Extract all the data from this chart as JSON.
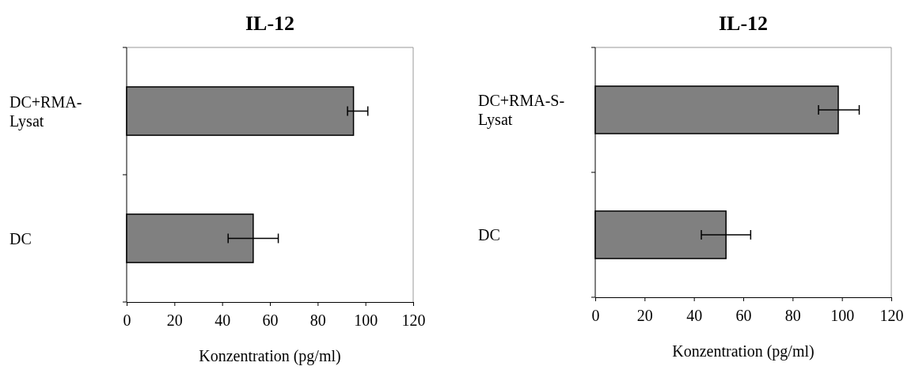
{
  "chart_data": [
    {
      "type": "bar",
      "orientation": "horizontal",
      "title": "IL-12",
      "xlabel": "Konzentration (pg/ml)",
      "categories": [
        "DC+RMA-Lysat",
        "DC"
      ],
      "values": [
        95,
        53
      ],
      "errors": [
        [
          92.5,
          101
        ],
        [
          42.5,
          63.5
        ]
      ],
      "color": "#808080",
      "xlim": [
        0,
        120
      ],
      "xticks": [
        0,
        20,
        40,
        60,
        80,
        100,
        120
      ]
    },
    {
      "type": "bar",
      "orientation": "horizontal",
      "title": "IL-12",
      "xlabel": "Konzentration (pg/ml)",
      "categories": [
        "DC+RMA-S-Lysat",
        "DC"
      ],
      "values": [
        98.5,
        53
      ],
      "errors": [
        [
          90.5,
          107
        ],
        [
          43,
          63
        ]
      ],
      "color": "#808080",
      "xlim": [
        0,
        120
      ],
      "xticks": [
        0,
        20,
        40,
        60,
        80,
        100,
        120
      ]
    }
  ]
}
